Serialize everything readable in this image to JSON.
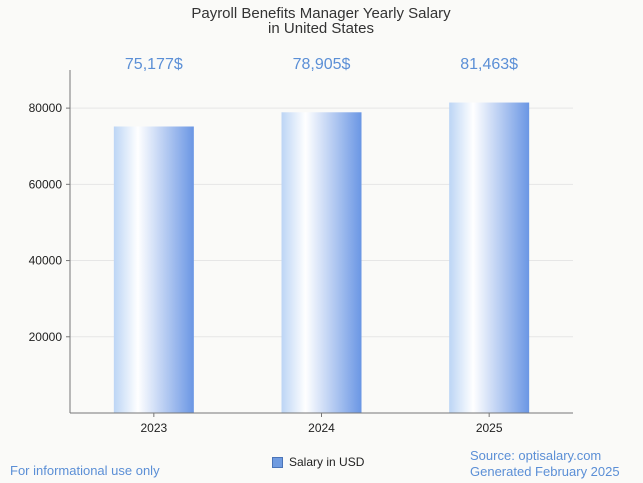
{
  "chart_data": {
    "type": "bar",
    "title_lines": [
      "Payroll Benefits Manager Yearly Salary",
      "in United States"
    ],
    "categories": [
      "2023",
      "2024",
      "2025"
    ],
    "series": [
      {
        "name": "Salary in USD",
        "values": [
          75177,
          78905,
          81463
        ]
      }
    ],
    "data_labels": [
      "75,177$",
      "78,905$",
      "81,463$"
    ],
    "yticks": [
      20000,
      40000,
      60000,
      80000
    ],
    "ylim": [
      0,
      90000
    ],
    "grid": true,
    "legend_position": "bottom-center"
  },
  "colors": {
    "bar_light": "#ffffff",
    "bar_mid": "#c5dcf7",
    "bar_dark": "#6a96e4",
    "label": "#5b8fd6",
    "grid": "#e6e6e6",
    "axis": "#777777"
  },
  "footer": {
    "disclaimer": "For informational use only",
    "source": "Source: optisalary.com",
    "generated": "Generated February 2025"
  }
}
